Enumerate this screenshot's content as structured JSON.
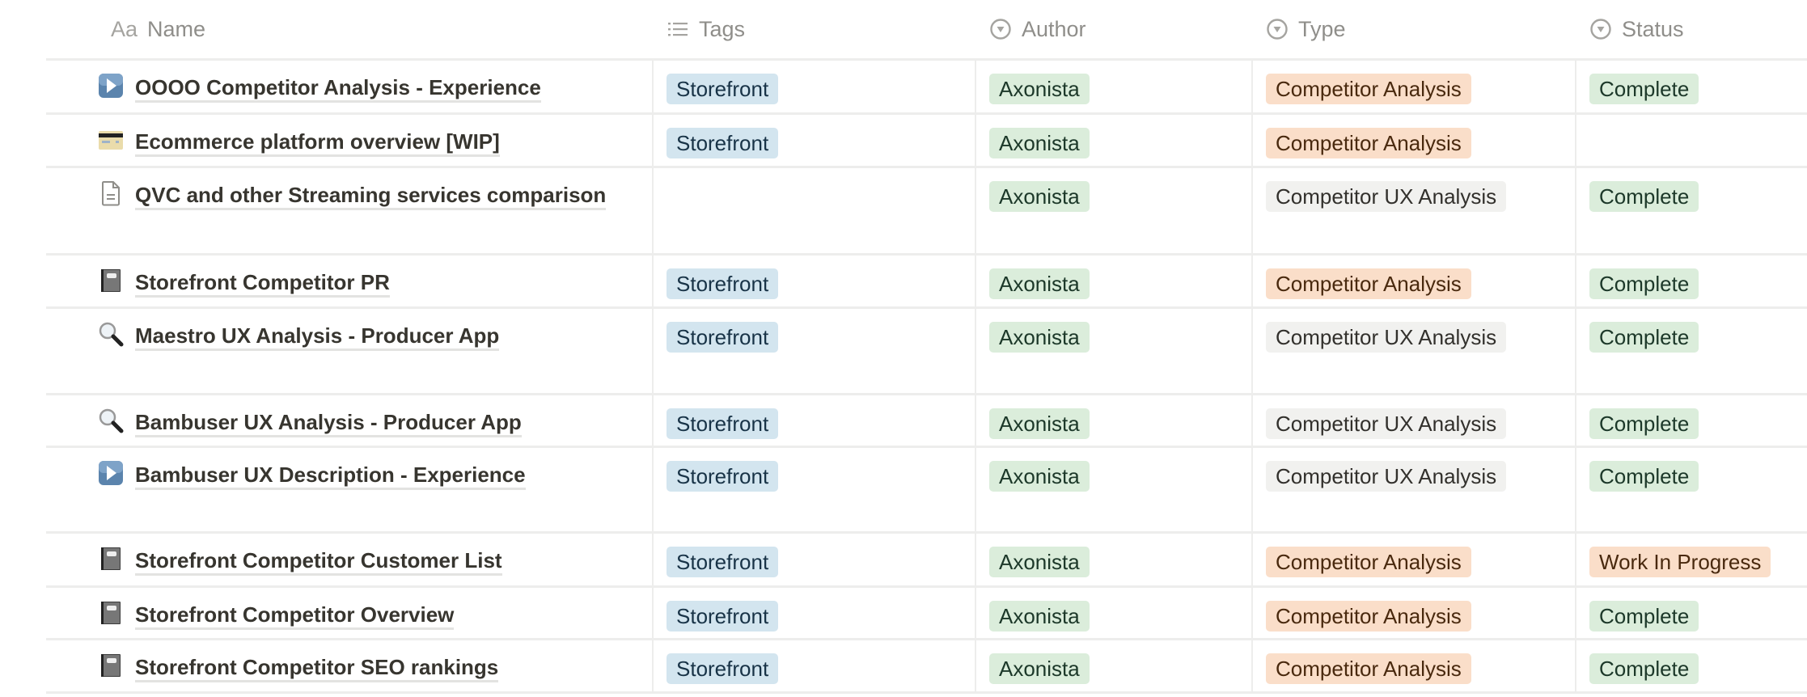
{
  "columns": [
    {
      "label": "Name",
      "icon": "text-aa-icon",
      "icon_text": "Aa"
    },
    {
      "label": "Tags",
      "icon": "multi-select-list-icon"
    },
    {
      "label": "Author",
      "icon": "select-dropdown-icon"
    },
    {
      "label": "Type",
      "icon": "select-dropdown-icon"
    },
    {
      "label": "Status",
      "icon": "select-dropdown-icon"
    }
  ],
  "colors": {
    "blue": "#d3e5ef",
    "green": "#dbeddb",
    "orange": "#fadec9",
    "gray": "#f1f1ef"
  },
  "rows": [
    {
      "icon": "play-button-icon",
      "name": "OOOO Competitor Analysis - Experience",
      "tag": "Storefront",
      "author": "Axonista",
      "type": "Competitor Analysis",
      "type_color": "orange",
      "status": "Complete",
      "status_color": "green",
      "h": 67
    },
    {
      "icon": "credit-card-icon",
      "name": "Ecommerce platform overview [WIP]",
      "tag": "Storefront",
      "author": "Axonista",
      "type": "Competitor Analysis",
      "type_color": "orange",
      "status": "",
      "status_color": "green",
      "h": 66
    },
    {
      "icon": "document-icon",
      "name": "QVC and other Streaming services comparison",
      "tag": "",
      "author": "Axonista",
      "type": "Competitor UX Analysis",
      "type_color": "gray",
      "status": "Complete",
      "status_color": "green",
      "h": 108
    },
    {
      "icon": "notebook-icon",
      "name": "Storefront Competitor PR",
      "tag": "Storefront",
      "author": "Axonista",
      "type": "Competitor Analysis",
      "type_color": "orange",
      "status": "Complete",
      "status_color": "green",
      "h": 66
    },
    {
      "icon": "magnifying-glass-icon",
      "name": "Maestro UX Analysis - Producer App",
      "tag": "Storefront",
      "author": "Axonista",
      "type": "Competitor UX Analysis",
      "type_color": "gray",
      "status": "Complete",
      "status_color": "green",
      "h": 107
    },
    {
      "icon": "magnifying-glass-icon",
      "name": "Bambuser UX Analysis - Producer App",
      "tag": "Storefront",
      "author": "Axonista",
      "type": "Competitor UX Analysis",
      "type_color": "gray",
      "status": "Complete",
      "status_color": "green",
      "h": 65
    },
    {
      "icon": "play-button-icon",
      "name": "Bambuser UX Description - Experience",
      "tag": "Storefront",
      "author": "Axonista",
      "type": "Competitor UX Analysis",
      "type_color": "gray",
      "status": "Complete",
      "status_color": "green",
      "h": 106
    },
    {
      "icon": "notebook-icon",
      "name": "Storefront Competitor Customer List",
      "tag": "Storefront",
      "author": "Axonista",
      "type": "Competitor Analysis",
      "type_color": "orange",
      "status": "Work In Progress",
      "status_color": "orange",
      "h": 67
    },
    {
      "icon": "notebook-icon",
      "name": "Storefront Competitor Overview",
      "tag": "Storefront",
      "author": "Axonista",
      "type": "Competitor Analysis",
      "type_color": "orange",
      "status": "Complete",
      "status_color": "green",
      "h": 65
    },
    {
      "icon": "notebook-icon",
      "name": "Storefront Competitor SEO rankings",
      "tag": "Storefront",
      "author": "Axonista",
      "type": "Competitor Analysis",
      "type_color": "orange",
      "status": "Complete",
      "status_color": "green",
      "h": 66
    }
  ]
}
